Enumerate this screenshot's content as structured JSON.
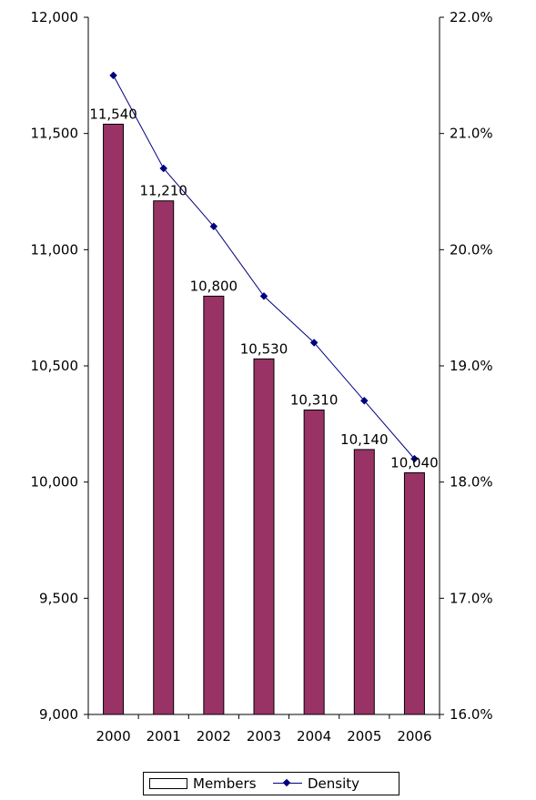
{
  "chart_data": {
    "type": "bar",
    "categories": [
      "2000",
      "2001",
      "2002",
      "2003",
      "2004",
      "2005",
      "2006"
    ],
    "series": [
      {
        "name": "Members",
        "type": "bar",
        "axis": "left",
        "values": [
          11540,
          11210,
          10800,
          10530,
          10310,
          10140,
          10040
        ],
        "labels": [
          "11,540",
          "11,210",
          "10,800",
          "10,530",
          "10,310",
          "10,140",
          "10,040"
        ]
      },
      {
        "name": "Density",
        "type": "line",
        "axis": "right",
        "values": [
          21.5,
          20.7,
          20.2,
          19.6,
          19.2,
          18.7,
          18.2
        ]
      }
    ],
    "y_left": {
      "ylim": [
        9000,
        12000
      ],
      "ticks": [
        9000,
        9500,
        10000,
        10500,
        11000,
        11500,
        12000
      ],
      "tick_labels": [
        "9,000",
        "9,500",
        "10,000",
        "10,500",
        "11,000",
        "11,500",
        "12,000"
      ]
    },
    "y_right": {
      "ylim": [
        16.0,
        22.0
      ],
      "ticks": [
        16,
        17,
        18,
        19,
        20,
        21,
        22
      ],
      "tick_labels": [
        "16.0%",
        "17.0%",
        "18.0%",
        "19.0%",
        "20.0%",
        "21.0%",
        "22.0%"
      ]
    },
    "grid": false,
    "legend": "bottom",
    "colors": {
      "bar": "#993366",
      "bar_edge": "#000000",
      "line": "#000080"
    }
  },
  "legend": {
    "members_label": "Members",
    "density_label": "Density"
  }
}
